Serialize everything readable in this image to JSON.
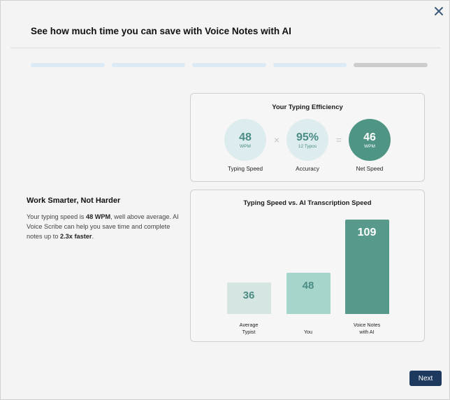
{
  "dialog": {
    "title": "See how much time you can save with Voice Notes with AI"
  },
  "progress": {
    "total_steps": 5,
    "current_step": 5
  },
  "left_panel": {
    "heading": "Work Smarter, Not Harder",
    "text_1": "Your typing speed is ",
    "bold_1": "48 WPM",
    "text_2": ", well above average. AI Voice Scribe can help you save time and complete notes up to ",
    "bold_2": "2.3x faster",
    "text_3": "."
  },
  "efficiency": {
    "title": "Your Typing Efficiency",
    "typing_speed": {
      "value": "48",
      "unit": "WPM",
      "label": "Typing Speed"
    },
    "times_symbol": "×",
    "accuracy": {
      "value": "95%",
      "sub": "12 Typos",
      "label": "Accuracy"
    },
    "equals_symbol": "=",
    "net_speed": {
      "value": "46",
      "unit": "WPM",
      "label": "Net Speed"
    }
  },
  "chart_data": {
    "type": "bar",
    "title": "Typing Speed vs. AI Transcription Speed",
    "categories": [
      "Average Typist",
      "You",
      "Voice Notes with AI"
    ],
    "category_lines": [
      [
        "Average",
        "Typist"
      ],
      [
        "You"
      ],
      [
        "Voice Notes",
        "with AI"
      ]
    ],
    "values": [
      36,
      48,
      109
    ],
    "value_labels": [
      "36",
      "48",
      "109"
    ],
    "colors": [
      "#d5e6e2",
      "#a6d5cb",
      "#579a8c"
    ],
    "label_colors": [
      "#4b8c83",
      "#4b8c83",
      "#ffffff"
    ],
    "ylim": [
      0,
      109
    ],
    "grid": false,
    "legend": "none"
  },
  "footer": {
    "next_label": "Next"
  },
  "colors": {
    "accent_dark": "#1d3a5e",
    "teal_dark": "#4f9585",
    "teal_light": "#dcecef",
    "progress_done": "#dceaf6",
    "progress_current": "#cccccc"
  },
  "icons": {
    "close": "close-icon"
  }
}
